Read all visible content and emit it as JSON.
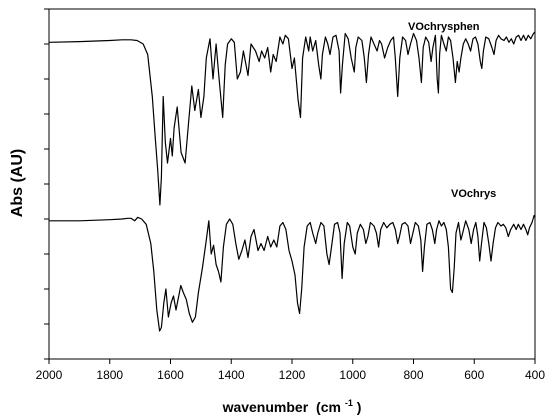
{
  "chart_data": {
    "type": "line",
    "title": "",
    "xlabel": "wavenumber",
    "xlabel_unit": "(cm",
    "xlabel_unit_sup": "-1",
    "xlabel_unit_close": ")",
    "ylabel": "Abs (AU)",
    "xlim": [
      2000,
      400
    ],
    "x_reversed": true,
    "y_ticks_labeled": false,
    "x_ticks": [
      "2000",
      "1800",
      "1600",
      "1400",
      "1200",
      "1000",
      "800",
      "600",
      "400"
    ],
    "grid": false,
    "ylim": [
      0,
      10
    ],
    "series": [
      {
        "name": "VOchrysphen",
        "points": [
          [
            2000,
            9.05
          ],
          [
            1900,
            9.07
          ],
          [
            1800,
            9.1
          ],
          [
            1760,
            9.12
          ],
          [
            1730,
            9.12
          ],
          [
            1710,
            9.1
          ],
          [
            1690,
            9.0
          ],
          [
            1675,
            8.7
          ],
          [
            1660,
            7.5
          ],
          [
            1650,
            6.3
          ],
          [
            1642,
            5.4
          ],
          [
            1635,
            4.4
          ],
          [
            1630,
            5.2
          ],
          [
            1624,
            7.5
          ],
          [
            1617,
            6.2
          ],
          [
            1610,
            5.6
          ],
          [
            1600,
            6.3
          ],
          [
            1594,
            5.8
          ],
          [
            1588,
            6.6
          ],
          [
            1578,
            7.2
          ],
          [
            1565,
            5.9
          ],
          [
            1552,
            5.6
          ],
          [
            1542,
            6.6
          ],
          [
            1530,
            7.8
          ],
          [
            1520,
            7.1
          ],
          [
            1508,
            7.7
          ],
          [
            1500,
            6.9
          ],
          [
            1490,
            7.5
          ],
          [
            1482,
            8.6
          ],
          [
            1470,
            9.15
          ],
          [
            1460,
            8.0
          ],
          [
            1450,
            9.0
          ],
          [
            1440,
            8.0
          ],
          [
            1428,
            6.9
          ],
          [
            1420,
            8.4
          ],
          [
            1412,
            9.0
          ],
          [
            1400,
            9.15
          ],
          [
            1390,
            9.05
          ],
          [
            1380,
            8.0
          ],
          [
            1370,
            8.2
          ],
          [
            1360,
            8.8
          ],
          [
            1345,
            8.1
          ],
          [
            1335,
            9.0
          ],
          [
            1320,
            8.8
          ],
          [
            1308,
            8.5
          ],
          [
            1300,
            8.8
          ],
          [
            1290,
            8.6
          ],
          [
            1280,
            8.9
          ],
          [
            1270,
            8.2
          ],
          [
            1262,
            8.7
          ],
          [
            1252,
            8.5
          ],
          [
            1240,
            9.2
          ],
          [
            1230,
            9.0
          ],
          [
            1222,
            9.25
          ],
          [
            1212,
            9.15
          ],
          [
            1200,
            8.3
          ],
          [
            1192,
            8.6
          ],
          [
            1180,
            7.4
          ],
          [
            1172,
            6.9
          ],
          [
            1165,
            8.6
          ],
          [
            1155,
            9.2
          ],
          [
            1145,
            8.8
          ],
          [
            1140,
            9.2
          ],
          [
            1132,
            8.8
          ],
          [
            1122,
            9.1
          ],
          [
            1112,
            8.4
          ],
          [
            1105,
            8.0
          ],
          [
            1100,
            8.7
          ],
          [
            1090,
            9.2
          ],
          [
            1082,
            9.0
          ],
          [
            1075,
            8.7
          ],
          [
            1065,
            9.2
          ],
          [
            1055,
            9.25
          ],
          [
            1045,
            8.8
          ],
          [
            1040,
            7.6
          ],
          [
            1034,
            8.4
          ],
          [
            1025,
            9.3
          ],
          [
            1015,
            9.15
          ],
          [
            1005,
            8.6
          ],
          [
            995,
            8.2
          ],
          [
            990,
            8.9
          ],
          [
            982,
            9.2
          ],
          [
            970,
            9.1
          ],
          [
            962,
            8.6
          ],
          [
            955,
            7.9
          ],
          [
            948,
            8.7
          ],
          [
            940,
            9.2
          ],
          [
            930,
            9.0
          ],
          [
            920,
            8.8
          ],
          [
            912,
            9.1
          ],
          [
            905,
            9.0
          ],
          [
            895,
            8.6
          ],
          [
            885,
            8.9
          ],
          [
            875,
            9.1
          ],
          [
            866,
            9.2
          ],
          [
            860,
            8.6
          ],
          [
            852,
            7.5
          ],
          [
            845,
            8.6
          ],
          [
            836,
            9.2
          ],
          [
            826,
            9.1
          ],
          [
            818,
            8.7
          ],
          [
            810,
            9.0
          ],
          [
            800,
            9.3
          ],
          [
            790,
            9.1
          ],
          [
            782,
            8.6
          ],
          [
            774,
            7.9
          ],
          [
            768,
            8.9
          ],
          [
            760,
            9.2
          ],
          [
            750,
            9.05
          ],
          [
            742,
            8.5
          ],
          [
            736,
            8.9
          ],
          [
            728,
            9.25
          ],
          [
            722,
            8.0
          ],
          [
            718,
            7.6
          ],
          [
            714,
            8.7
          ],
          [
            708,
            9.25
          ],
          [
            700,
            9.0
          ],
          [
            692,
            8.8
          ],
          [
            685,
            9.2
          ],
          [
            678,
            9.1
          ],
          [
            670,
            8.6
          ],
          [
            662,
            7.9
          ],
          [
            656,
            8.5
          ],
          [
            650,
            8.2
          ],
          [
            644,
            8.6
          ],
          [
            636,
            9.0
          ],
          [
            628,
            9.15
          ],
          [
            620,
            9.0
          ],
          [
            612,
            8.8
          ],
          [
            604,
            9.15
          ],
          [
            596,
            9.2
          ],
          [
            588,
            9.0
          ],
          [
            580,
            8.5
          ],
          [
            575,
            8.3
          ],
          [
            570,
            8.8
          ],
          [
            562,
            9.2
          ],
          [
            552,
            9.15
          ],
          [
            542,
            8.9
          ],
          [
            535,
            8.7
          ],
          [
            528,
            9.1
          ],
          [
            520,
            9.25
          ],
          [
            512,
            9.15
          ],
          [
            502,
            9.1
          ],
          [
            494,
            9.2
          ],
          [
            486,
            9.05
          ],
          [
            478,
            9.15
          ],
          [
            470,
            9.0
          ],
          [
            462,
            9.2
          ],
          [
            454,
            9.25
          ],
          [
            446,
            9.1
          ],
          [
            438,
            9.25
          ],
          [
            430,
            9.1
          ],
          [
            422,
            9.25
          ],
          [
            414,
            9.15
          ],
          [
            405,
            9.3
          ],
          [
            400,
            9.35
          ]
        ]
      },
      {
        "name": "VOchrys",
        "points": [
          [
            2000,
            3.95
          ],
          [
            1900,
            3.95
          ],
          [
            1800,
            3.98
          ],
          [
            1760,
            4.0
          ],
          [
            1740,
            4.02
          ],
          [
            1730,
            4.02
          ],
          [
            1718,
            3.95
          ],
          [
            1708,
            4.05
          ],
          [
            1695,
            4.0
          ],
          [
            1680,
            3.85
          ],
          [
            1665,
            3.3
          ],
          [
            1655,
            2.5
          ],
          [
            1645,
            1.4
          ],
          [
            1636,
            0.8
          ],
          [
            1630,
            0.9
          ],
          [
            1622,
            1.6
          ],
          [
            1615,
            2.0
          ],
          [
            1607,
            1.2
          ],
          [
            1598,
            1.6
          ],
          [
            1590,
            1.8
          ],
          [
            1582,
            1.4
          ],
          [
            1574,
            1.75
          ],
          [
            1566,
            2.1
          ],
          [
            1558,
            1.9
          ],
          [
            1548,
            1.7
          ],
          [
            1538,
            1.3
          ],
          [
            1528,
            1.05
          ],
          [
            1518,
            1.2
          ],
          [
            1508,
            1.9
          ],
          [
            1495,
            2.6
          ],
          [
            1482,
            3.4
          ],
          [
            1474,
            3.95
          ],
          [
            1466,
            3.0
          ],
          [
            1458,
            3.25
          ],
          [
            1450,
            2.7
          ],
          [
            1442,
            2.5
          ],
          [
            1434,
            2.2
          ],
          [
            1426,
            3.2
          ],
          [
            1416,
            3.85
          ],
          [
            1405,
            4.0
          ],
          [
            1395,
            3.85
          ],
          [
            1385,
            3.3
          ],
          [
            1375,
            2.85
          ],
          [
            1365,
            3.1
          ],
          [
            1355,
            3.4
          ],
          [
            1345,
            2.9
          ],
          [
            1335,
            3.5
          ],
          [
            1325,
            3.7
          ],
          [
            1312,
            3.1
          ],
          [
            1302,
            3.3
          ],
          [
            1292,
            3.1
          ],
          [
            1280,
            3.5
          ],
          [
            1270,
            3.2
          ],
          [
            1260,
            3.4
          ],
          [
            1250,
            3.2
          ],
          [
            1240,
            3.8
          ],
          [
            1230,
            3.9
          ],
          [
            1220,
            3.7
          ],
          [
            1210,
            3.1
          ],
          [
            1200,
            2.8
          ],
          [
            1190,
            2.4
          ],
          [
            1182,
            1.6
          ],
          [
            1175,
            1.3
          ],
          [
            1168,
            2.0
          ],
          [
            1160,
            3.2
          ],
          [
            1150,
            3.8
          ],
          [
            1140,
            3.9
          ],
          [
            1132,
            3.6
          ],
          [
            1122,
            3.3
          ],
          [
            1115,
            3.6
          ],
          [
            1105,
            3.9
          ],
          [
            1095,
            3.8
          ],
          [
            1085,
            3.0
          ],
          [
            1078,
            2.7
          ],
          [
            1070,
            3.2
          ],
          [
            1060,
            3.85
          ],
          [
            1050,
            3.9
          ],
          [
            1042,
            3.6
          ],
          [
            1035,
            2.3
          ],
          [
            1028,
            3.3
          ],
          [
            1018,
            3.9
          ],
          [
            1010,
            3.8
          ],
          [
            1000,
            3.2
          ],
          [
            992,
            3.0
          ],
          [
            985,
            3.6
          ],
          [
            975,
            3.85
          ],
          [
            965,
            3.7
          ],
          [
            957,
            3.3
          ],
          [
            950,
            3.5
          ],
          [
            942,
            3.9
          ],
          [
            930,
            3.8
          ],
          [
            922,
            3.6
          ],
          [
            915,
            3.2
          ],
          [
            908,
            3.7
          ],
          [
            898,
            3.9
          ],
          [
            888,
            3.75
          ],
          [
            878,
            3.85
          ],
          [
            868,
            3.9
          ],
          [
            860,
            3.7
          ],
          [
            852,
            3.3
          ],
          [
            846,
            3.5
          ],
          [
            838,
            3.85
          ],
          [
            828,
            3.9
          ],
          [
            818,
            3.8
          ],
          [
            810,
            3.3
          ],
          [
            802,
            3.6
          ],
          [
            794,
            3.9
          ],
          [
            784,
            3.8
          ],
          [
            776,
            3.4
          ],
          [
            770,
            2.5
          ],
          [
            764,
            3.2
          ],
          [
            756,
            3.85
          ],
          [
            746,
            3.9
          ],
          [
            738,
            3.7
          ],
          [
            730,
            3.3
          ],
          [
            724,
            3.7
          ],
          [
            716,
            3.95
          ],
          [
            708,
            3.8
          ],
          [
            700,
            3.9
          ],
          [
            692,
            3.7
          ],
          [
            685,
            3.2
          ],
          [
            678,
            2.0
          ],
          [
            672,
            1.9
          ],
          [
            666,
            2.6
          ],
          [
            660,
            3.6
          ],
          [
            652,
            3.9
          ],
          [
            644,
            3.4
          ],
          [
            638,
            3.6
          ],
          [
            628,
            3.95
          ],
          [
            618,
            3.7
          ],
          [
            610,
            3.3
          ],
          [
            602,
            3.7
          ],
          [
            595,
            3.9
          ],
          [
            588,
            3.5
          ],
          [
            582,
            2.8
          ],
          [
            576,
            3.3
          ],
          [
            568,
            3.9
          ],
          [
            560,
            3.75
          ],
          [
            552,
            3.3
          ],
          [
            545,
            2.8
          ],
          [
            538,
            3.3
          ],
          [
            530,
            3.75
          ],
          [
            522,
            3.9
          ],
          [
            512,
            3.8
          ],
          [
            504,
            3.85
          ],
          [
            496,
            3.75
          ],
          [
            488,
            3.5
          ],
          [
            480,
            3.7
          ],
          [
            470,
            3.85
          ],
          [
            462,
            3.7
          ],
          [
            455,
            3.85
          ],
          [
            446,
            3.7
          ],
          [
            438,
            3.85
          ],
          [
            430,
            3.7
          ],
          [
            424,
            3.55
          ],
          [
            418,
            3.75
          ],
          [
            410,
            3.9
          ],
          [
            403,
            4.1
          ],
          [
            400,
            4.05
          ]
        ]
      }
    ]
  }
}
